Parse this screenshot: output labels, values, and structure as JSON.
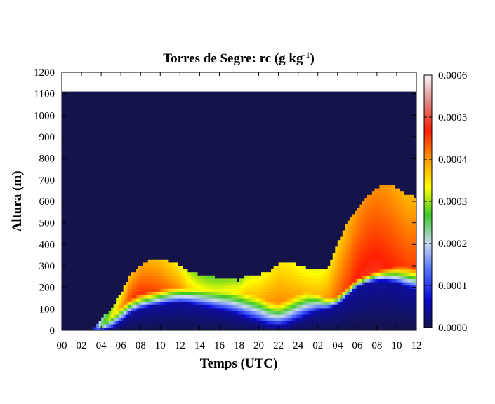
{
  "chart_data": {
    "type": "heatmap",
    "title_main": "Torres de Segre: rc (g kg",
    "title_sup": "-1",
    "title_end": ")",
    "xlabel": "Temps (UTC)",
    "ylabel": "Altura (m)",
    "x_ticks": [
      "00",
      "02",
      "04",
      "06",
      "08",
      "10",
      "12",
      "14",
      "16",
      "18",
      "20",
      "22",
      "24",
      "02",
      "04",
      "06",
      "08",
      "10",
      "12"
    ],
    "x_range_hours": [
      0,
      36
    ],
    "y_ticks": [
      "0",
      "100",
      "200",
      "300",
      "400",
      "500",
      "600",
      "700",
      "800",
      "900",
      "1000",
      "1100",
      "1200"
    ],
    "ylim": [
      0,
      1200
    ],
    "data_top_m": 1110,
    "colorbar": {
      "ticks": [
        "0.0000",
        "0.0001",
        "0.0002",
        "0.0003",
        "0.0004",
        "0.0005",
        "0.0006"
      ],
      "range": [
        0,
        0.0006
      ],
      "colors": [
        "#14144a",
        "#0a0ad2",
        "#4d6cff",
        "#c8d8f0",
        "#3cc82d",
        "#ffff00",
        "#ff9a00",
        "#ff2000",
        "#e08080",
        "#f8f8f8"
      ]
    },
    "background_color": "#14144a",
    "structure_hours": [
      0,
      3,
      4,
      5,
      6,
      7,
      8,
      9,
      10,
      11,
      12,
      13,
      14,
      15,
      16,
      17,
      18,
      19,
      20,
      21,
      22,
      23,
      24,
      25,
      26,
      27,
      28,
      29,
      30,
      31,
      32,
      33,
      34,
      35,
      36
    ],
    "cloud_top_m": [
      0,
      0,
      50,
      100,
      170,
      260,
      300,
      330,
      330,
      320,
      300,
      270,
      260,
      250,
      245,
      240,
      230,
      260,
      260,
      270,
      310,
      320,
      300,
      290,
      280,
      290,
      400,
      500,
      570,
      620,
      660,
      680,
      660,
      630,
      620
    ],
    "core_low_m": [
      0,
      0,
      20,
      60,
      110,
      150,
      170,
      180,
      190,
      200,
      200,
      195,
      190,
      185,
      180,
      180,
      175,
      170,
      160,
      140,
      130,
      150,
      170,
      180,
      170,
      150,
      160,
      200,
      240,
      260,
      280,
      290,
      300,
      300,
      290
    ],
    "moist_low_m": [
      0,
      0,
      0,
      10,
      40,
      80,
      100,
      110,
      120,
      125,
      130,
      125,
      115,
      105,
      95,
      85,
      70,
      55,
      40,
      25,
      20,
      30,
      50,
      70,
      90,
      100,
      120,
      160,
      200,
      220,
      230,
      230,
      220,
      200,
      190
    ],
    "peak_value": [
      0,
      0,
      0.00025,
      0.00033,
      0.0004,
      0.00045,
      0.00046,
      0.00045,
      0.00044,
      0.00042,
      0.0004,
      0.00036,
      0.00034,
      0.00033,
      0.00033,
      0.00034,
      0.00035,
      0.00037,
      0.00038,
      0.0004,
      0.00041,
      0.0004,
      0.00039,
      0.00038,
      0.00038,
      0.0004,
      0.00043,
      0.00045,
      0.00047,
      0.00048,
      0.00048,
      0.00047,
      0.00046,
      0.00045,
      0.00045
    ]
  }
}
